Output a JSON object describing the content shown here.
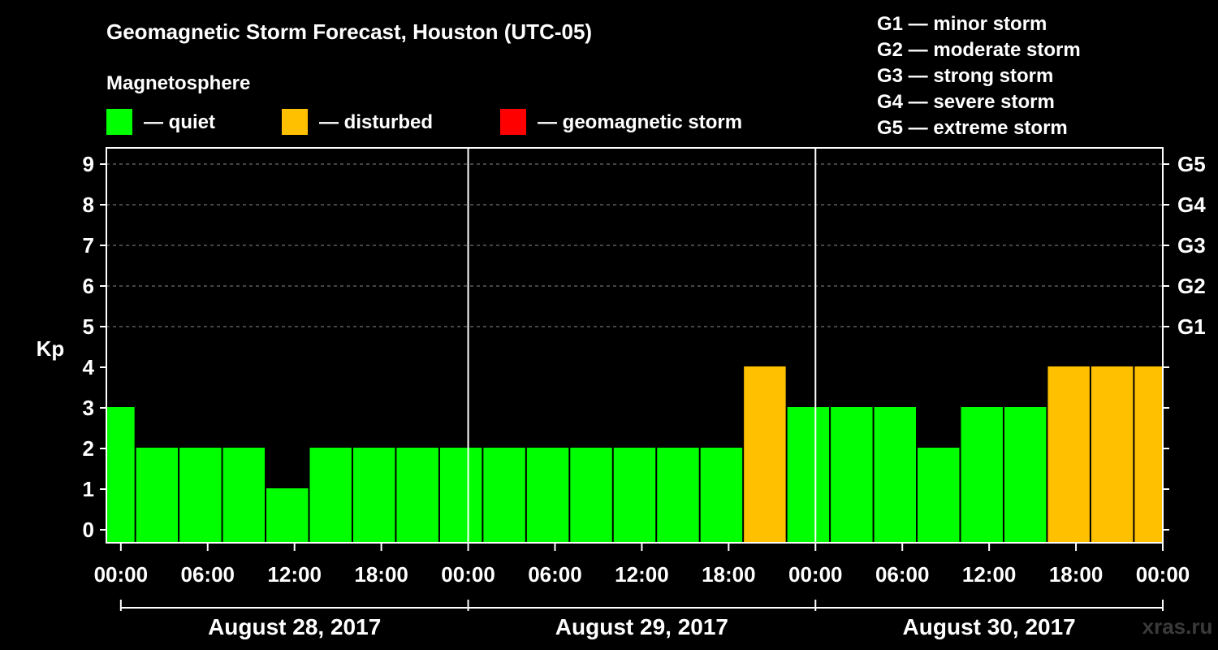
{
  "chart_data": {
    "type": "bar",
    "title": "Geomagnetic Storm Forecast, Houston (UTC-05)",
    "legend_title": "Magnetosphere",
    "legend": [
      {
        "label": "— quiet",
        "color": "#00ff00"
      },
      {
        "label": "— disturbed",
        "color": "#ffc000"
      },
      {
        "label": "— geomagnetic storm",
        "color": "#ff0000"
      }
    ],
    "storm_scale": [
      "G1 — minor storm",
      "G2 — moderate storm",
      "G3 — strong storm",
      "G4 — severe storm",
      "G5 — extreme storm"
    ],
    "ylabel": "Kp",
    "ylim": [
      0,
      9
    ],
    "yticks": [
      "0",
      "1",
      "2",
      "3",
      "4",
      "5",
      "6",
      "7",
      "8",
      "9"
    ],
    "right_ticks": [
      {
        "label": "G1",
        "kp": 5
      },
      {
        "label": "G2",
        "kp": 6
      },
      {
        "label": "G3",
        "kp": 7
      },
      {
        "label": "G4",
        "kp": 8
      },
      {
        "label": "G5",
        "kp": 9
      }
    ],
    "x_start_hour": -1,
    "x_end_hour": 72,
    "xticks": [
      "00:00",
      "06:00",
      "12:00",
      "18:00",
      "00:00",
      "06:00",
      "12:00",
      "18:00",
      "00:00",
      "06:00",
      "12:00",
      "18:00",
      "00:00"
    ],
    "days": [
      "August 28, 2017",
      "August 29, 2017",
      "August 30, 2017"
    ],
    "bars": [
      {
        "start": -1,
        "end": 1,
        "kp": 3,
        "status": "quiet"
      },
      {
        "start": 1,
        "end": 4,
        "kp": 2,
        "status": "quiet"
      },
      {
        "start": 4,
        "end": 7,
        "kp": 2,
        "status": "quiet"
      },
      {
        "start": 7,
        "end": 10,
        "kp": 2,
        "status": "quiet"
      },
      {
        "start": 10,
        "end": 13,
        "kp": 1,
        "status": "quiet"
      },
      {
        "start": 13,
        "end": 16,
        "kp": 2,
        "status": "quiet"
      },
      {
        "start": 16,
        "end": 19,
        "kp": 2,
        "status": "quiet"
      },
      {
        "start": 19,
        "end": 22,
        "kp": 2,
        "status": "quiet"
      },
      {
        "start": 22,
        "end": 25,
        "kp": 2,
        "status": "quiet"
      },
      {
        "start": 25,
        "end": 28,
        "kp": 2,
        "status": "quiet"
      },
      {
        "start": 28,
        "end": 31,
        "kp": 2,
        "status": "quiet"
      },
      {
        "start": 31,
        "end": 34,
        "kp": 2,
        "status": "quiet"
      },
      {
        "start": 34,
        "end": 37,
        "kp": 2,
        "status": "quiet"
      },
      {
        "start": 37,
        "end": 40,
        "kp": 2,
        "status": "quiet"
      },
      {
        "start": 40,
        "end": 43,
        "kp": 2,
        "status": "quiet"
      },
      {
        "start": 43,
        "end": 46,
        "kp": 4,
        "status": "disturbed"
      },
      {
        "start": 46,
        "end": 49,
        "kp": 3,
        "status": "quiet"
      },
      {
        "start": 49,
        "end": 52,
        "kp": 3,
        "status": "quiet"
      },
      {
        "start": 52,
        "end": 55,
        "kp": 3,
        "status": "quiet"
      },
      {
        "start": 55,
        "end": 58,
        "kp": 2,
        "status": "quiet"
      },
      {
        "start": 58,
        "end": 61,
        "kp": 3,
        "status": "quiet"
      },
      {
        "start": 61,
        "end": 64,
        "kp": 3,
        "status": "quiet"
      },
      {
        "start": 64,
        "end": 67,
        "kp": 4,
        "status": "disturbed"
      },
      {
        "start": 67,
        "end": 70,
        "kp": 4,
        "status": "disturbed"
      },
      {
        "start": 70,
        "end": 72,
        "kp": 4,
        "status": "disturbed"
      }
    ],
    "colors": {
      "quiet": "#00ff00",
      "disturbed": "#ffc000",
      "storm": "#ff0000"
    },
    "watermark": "xras.ru"
  }
}
